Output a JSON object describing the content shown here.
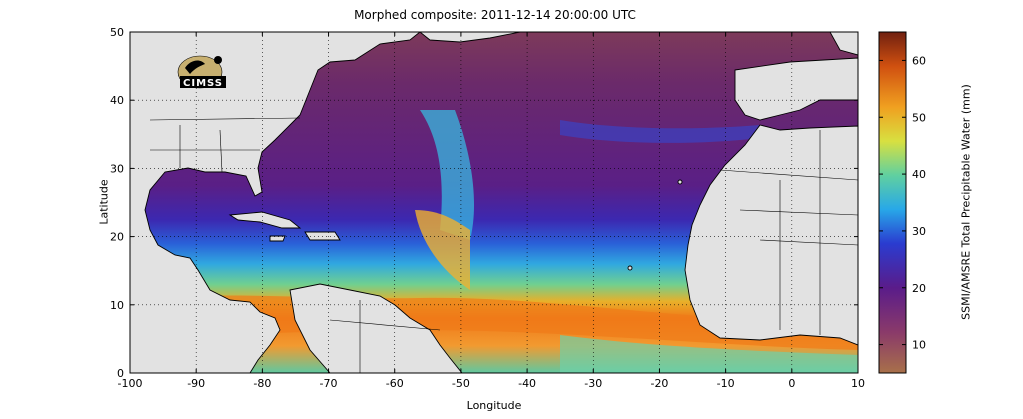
{
  "title": "Morphed composite: 2011-12-14 20:00:00 UTC",
  "axes": {
    "xlabel": "Longitude",
    "ylabel": "Latitude",
    "xlim": [
      -100,
      10
    ],
    "ylim": [
      0,
      50
    ],
    "xticks": [
      "-100",
      "-90",
      "-80",
      "-70",
      "-60",
      "-50",
      "-40",
      "-30",
      "-20",
      "-10",
      "0",
      "10"
    ],
    "yticks": [
      "0",
      "10",
      "20",
      "30",
      "40",
      "50"
    ],
    "grid": "dotted"
  },
  "colorbar": {
    "label": "SSMI/AMSRE Total Precipitable Water (mm)",
    "ticks": [
      "10",
      "20",
      "30",
      "40",
      "50",
      "60"
    ],
    "range": [
      5,
      65
    ]
  },
  "logo": {
    "text": "CIMSS"
  },
  "colors": {
    "land": "#e2e2e2",
    "coast": "#000000",
    "dry": "#8a3a52",
    "moist": "#e05510"
  }
}
